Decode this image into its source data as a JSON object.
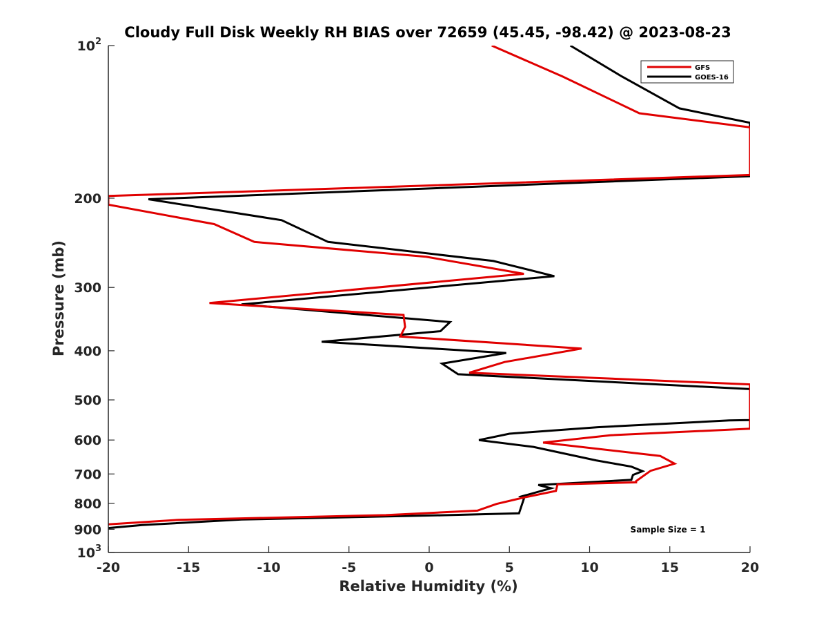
{
  "chart_data": {
    "type": "line",
    "title": "Cloudy Full Disk Weekly RH BIAS over 72659 (45.45, -98.42) @ 2023-08-23",
    "xlabel": "Relative Humidity (%)",
    "ylabel": "Pressure (mb)",
    "xlim": [
      -20,
      20
    ],
    "ylim": [
      100,
      1000
    ],
    "yscale": "log",
    "yreversed": true,
    "grid": false,
    "legend_position": "top-right",
    "annotation": "Sample Size = 1",
    "x_ticks": [
      {
        "value": -20,
        "label": "-20"
      },
      {
        "value": -15,
        "label": "-15"
      },
      {
        "value": -10,
        "label": "-10"
      },
      {
        "value": -5,
        "label": "-5"
      },
      {
        "value": 0,
        "label": "0"
      },
      {
        "value": 5,
        "label": "5"
      },
      {
        "value": 10,
        "label": "10"
      },
      {
        "value": 15,
        "label": "15"
      },
      {
        "value": 20,
        "label": "20"
      }
    ],
    "y_ticks": [
      {
        "value": 100,
        "label": "10",
        "sup": "2"
      },
      {
        "value": 200,
        "label": "200"
      },
      {
        "value": 300,
        "label": "300"
      },
      {
        "value": 400,
        "label": "400"
      },
      {
        "value": 500,
        "label": "500"
      },
      {
        "value": 600,
        "label": "600"
      },
      {
        "value": 700,
        "label": "700"
      },
      {
        "value": 800,
        "label": "800"
      },
      {
        "value": 900,
        "label": "900"
      },
      {
        "value": 1000,
        "label": "10",
        "sup": "3"
      }
    ],
    "series": [
      {
        "name": "GFS",
        "color": "#e00000",
        "points": [
          [
            3.9,
            100
          ],
          [
            8.3,
            115
          ],
          [
            13.1,
            136
          ],
          [
            20,
            145
          ],
          [
            20,
            180
          ],
          [
            -20,
            198
          ],
          [
            -20,
            206
          ],
          [
            -13.4,
            225
          ],
          [
            -10.9,
            244
          ],
          [
            -0.2,
            261
          ],
          [
            1.9,
            268
          ],
          [
            5.9,
            282
          ],
          [
            -13.7,
            322
          ],
          [
            -1.6,
            340
          ],
          [
            -1.5,
            359
          ],
          [
            -1.8,
            375
          ],
          [
            9.5,
            396
          ],
          [
            4.7,
            421
          ],
          [
            2.5,
            442
          ],
          [
            20,
            466
          ],
          [
            20,
            570
          ],
          [
            11.3,
            587
          ],
          [
            7.1,
            607
          ],
          [
            14.4,
            645
          ],
          [
            15.3,
            668
          ],
          [
            13.8,
            690
          ],
          [
            12.9,
            723
          ],
          [
            12.9,
            727
          ],
          [
            8.0,
            734
          ],
          [
            7.9,
            756
          ],
          [
            5.9,
            779
          ],
          [
            4.2,
            802
          ],
          [
            3.0,
            827
          ],
          [
            -2.7,
            844
          ],
          [
            -15.6,
            862
          ],
          [
            -20,
            880
          ]
        ]
      },
      {
        "name": "GOES-16",
        "color": "#000000",
        "points": [
          [
            8.8,
            100
          ],
          [
            12,
            115
          ],
          [
            15.6,
            133
          ],
          [
            20,
            142
          ],
          [
            20,
            181
          ],
          [
            -17.5,
            201
          ],
          [
            -9.2,
            221
          ],
          [
            -6.3,
            244
          ],
          [
            4.0,
            266
          ],
          [
            7.8,
            285
          ],
          [
            -11.7,
            324
          ],
          [
            1.3,
            351
          ],
          [
            0.7,
            366
          ],
          [
            -6.7,
            384
          ],
          [
            4.8,
            404
          ],
          [
            0.8,
            424
          ],
          [
            1.8,
            445
          ],
          [
            20,
            476
          ],
          [
            20,
            548
          ],
          [
            18.7,
            549
          ],
          [
            10.5,
            566
          ],
          [
            5.0,
            583
          ],
          [
            3.1,
            600
          ],
          [
            6.5,
            619
          ],
          [
            10.4,
            658
          ],
          [
            12.6,
            677
          ],
          [
            13.3,
            691
          ],
          [
            12.7,
            703
          ],
          [
            12.6,
            719
          ],
          [
            6.8,
            736
          ],
          [
            7.6,
            747
          ],
          [
            5.7,
            776
          ],
          [
            5.9,
            784
          ],
          [
            5.6,
            837
          ],
          [
            0.4,
            845
          ],
          [
            -11.7,
            861
          ],
          [
            -17.9,
            883
          ],
          [
            -20,
            895
          ]
        ]
      }
    ]
  }
}
